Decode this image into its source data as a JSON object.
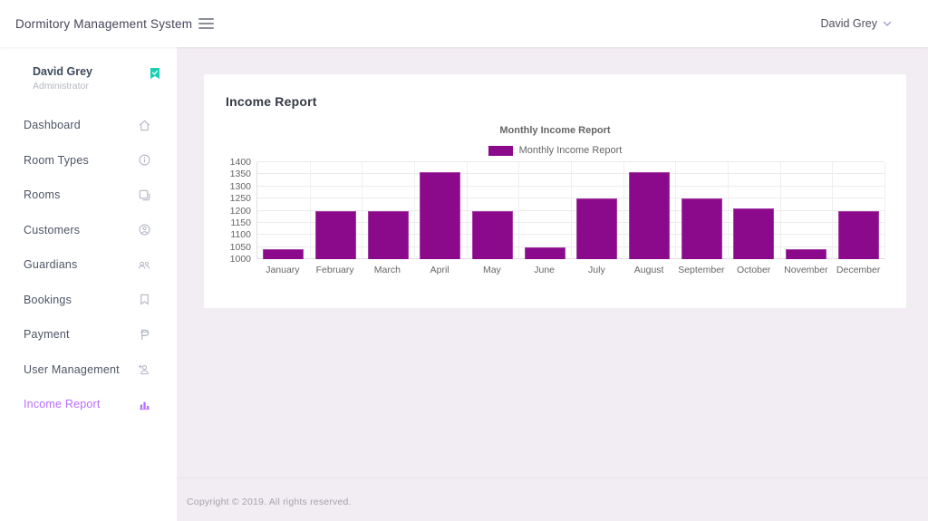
{
  "navbar": {
    "brand": "Dormitory Management System",
    "user_name": "David Grey",
    "icons": {
      "menu": "hamburger-icon",
      "user_dropdown": "chevron-down-icon"
    }
  },
  "sidebar": {
    "profile": {
      "name": "David Grey",
      "role": "Administrator",
      "badge_icon": "verified-check-icon",
      "badge_color": "#1bcfb4"
    },
    "items": [
      {
        "label": "Dashboard",
        "icon": "home-icon",
        "active": false
      },
      {
        "label": "Room Types",
        "icon": "info-icon",
        "active": false
      },
      {
        "label": "Rooms",
        "icon": "rooms-copy-icon",
        "active": false
      },
      {
        "label": "Customers",
        "icon": "customer-person-icon",
        "active": false
      },
      {
        "label": "Guardians",
        "icon": "guardians-people-icon",
        "active": false
      },
      {
        "label": "Bookings",
        "icon": "bookmark-icon",
        "active": false
      },
      {
        "label": "Payment",
        "icon": "peso-icon",
        "active": false
      },
      {
        "label": "User Management",
        "icon": "user-add-icon",
        "active": false
      },
      {
        "label": "Income Report",
        "icon": "bar-chart-icon",
        "active": true
      }
    ]
  },
  "main": {
    "card_title": "Income Report"
  },
  "chart_data": {
    "type": "bar",
    "title": "Monthly Income Report",
    "legend": [
      "Monthly Income Report"
    ],
    "legend_position": "top",
    "categories": [
      "January",
      "February",
      "March",
      "April",
      "May",
      "June",
      "July",
      "August",
      "September",
      "October",
      "November",
      "December"
    ],
    "series": [
      {
        "name": "Monthly Income Report",
        "values": [
          1040,
          1200,
          1200,
          1360,
          1200,
          1050,
          1250,
          1360,
          1250,
          1210,
          1040,
          1200
        ]
      }
    ],
    "ylim": [
      1000,
      1400
    ],
    "ytick_step": 50,
    "grid": true,
    "bar_color": "#8b0a8b",
    "bar_border_color": "#a63ea6"
  },
  "footer": {
    "text": "Copyright © 2019. All rights reserved."
  },
  "colors": {
    "accent": "#b66dff",
    "success": "#1bcfb4",
    "content_bg": "#f2edf3",
    "bar": "#8b0a8b"
  }
}
